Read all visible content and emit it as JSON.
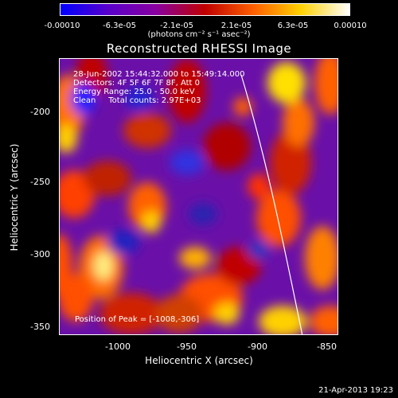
{
  "colorbar": {
    "ticks": [
      "-0.00010",
      "-6.3e-05",
      "-2.1e-05",
      "2.1e-05",
      "6.3e-05",
      "0.00010"
    ],
    "units": "(photons cm⁻² s⁻¹ asec⁻²)",
    "colors": [
      "#0000ff",
      "#5a00c8",
      "#8800a0",
      "#c00000",
      "#ff6000",
      "#ffd000",
      "#ffffff"
    ]
  },
  "title": "Reconstructed RHESSI Image",
  "info": {
    "line1": "28-Jun-2002 15:44:32.000 to 15:49:14.000",
    "line2": "Detectors: 4F 5F 6F 7F 8F, Att 0",
    "line3": "Energy Range: 25.0 - 50.0 keV",
    "line4": "Clean     Total counts: 2.97E+03"
  },
  "peak_text": "Position of Peak = [-1008,-306]",
  "axes": {
    "xlabel": "Heliocentric X (arcsec)",
    "ylabel": "Heliocentric Y (arcsec)",
    "xticks": [
      "-1000",
      "-950",
      "-900",
      "-850"
    ],
    "yticks": [
      "-200",
      "-250",
      "-300",
      "-350"
    ],
    "xlim": [
      -1040,
      -850
    ],
    "ylim": [
      -355,
      -165
    ]
  },
  "footer": "21-Apr-2013 19:23"
}
